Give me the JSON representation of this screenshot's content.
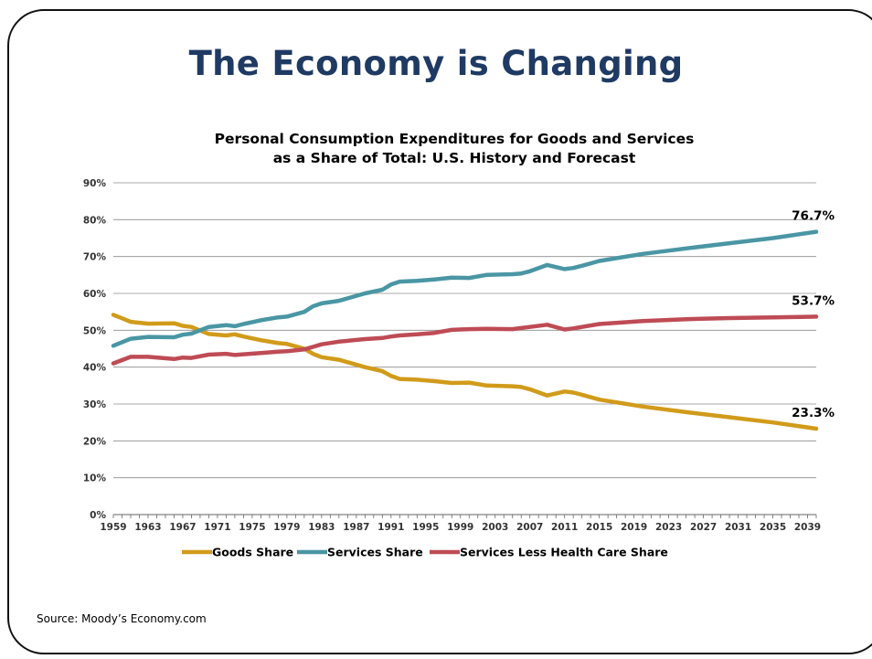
{
  "slide": {
    "title": "The Economy is Changing",
    "source": "Source: Moody’s Economy.com"
  },
  "chart_data": {
    "type": "line",
    "title": "Personal Consumption Expenditures for Goods and Services",
    "subtitle": "as a Share of Total: U.S. History and Forecast",
    "xlabel": "",
    "ylabel": "",
    "ylim": [
      0,
      90
    ],
    "y_ticks": [
      "0%",
      "10%",
      "20%",
      "30%",
      "40%",
      "50%",
      "60%",
      "70%",
      "80%",
      "90%"
    ],
    "x_tick_labels": [
      "1959",
      "1963",
      "1967",
      "1971",
      "1975",
      "1979",
      "1983",
      "1987",
      "1991",
      "1995",
      "1999",
      "2003",
      "2007",
      "2011",
      "2015",
      "2019",
      "2023",
      "2027",
      "2031",
      "2035",
      "2039"
    ],
    "grid": true,
    "legend_position": "bottom",
    "series": [
      {
        "name": "Goods Share",
        "color": "#d19b1a",
        "end_label": "23.3%",
        "points": [
          [
            1959,
            54.2
          ],
          [
            1961,
            52.3
          ],
          [
            1963,
            51.8
          ],
          [
            1966,
            51.9
          ],
          [
            1967,
            51.2
          ],
          [
            1968,
            50.9
          ],
          [
            1970,
            49.0
          ],
          [
            1972,
            48.6
          ],
          [
            1973,
            48.9
          ],
          [
            1974,
            48.3
          ],
          [
            1976,
            47.3
          ],
          [
            1978,
            46.5
          ],
          [
            1979,
            46.3
          ],
          [
            1981,
            45.0
          ],
          [
            1982,
            43.6
          ],
          [
            1983,
            42.7
          ],
          [
            1985,
            42.0
          ],
          [
            1988,
            40.0
          ],
          [
            1990,
            38.9
          ],
          [
            1991,
            37.6
          ],
          [
            1992,
            36.8
          ],
          [
            1994,
            36.6
          ],
          [
            1996,
            36.2
          ],
          [
            1998,
            35.7
          ],
          [
            2000,
            35.8
          ],
          [
            2002,
            35.0
          ],
          [
            2005,
            34.8
          ],
          [
            2006,
            34.6
          ],
          [
            2007,
            34.0
          ],
          [
            2009,
            32.3
          ],
          [
            2011,
            33.4
          ],
          [
            2012,
            33.1
          ],
          [
            2013,
            32.5
          ],
          [
            2015,
            31.2
          ],
          [
            2020,
            29.3
          ],
          [
            2025,
            27.8
          ],
          [
            2030,
            26.4
          ],
          [
            2035,
            25.0
          ],
          [
            2040,
            23.3
          ]
        ]
      },
      {
        "name": "Services Share",
        "color": "#4a96a4",
        "end_label": "76.7%",
        "points": [
          [
            1959,
            45.8
          ],
          [
            1961,
            47.7
          ],
          [
            1963,
            48.2
          ],
          [
            1966,
            48.1
          ],
          [
            1967,
            48.8
          ],
          [
            1968,
            49.1
          ],
          [
            1970,
            50.9
          ],
          [
            1972,
            51.4
          ],
          [
            1973,
            51.1
          ],
          [
            1974,
            51.7
          ],
          [
            1976,
            52.7
          ],
          [
            1978,
            53.5
          ],
          [
            1979,
            53.7
          ],
          [
            1981,
            55.0
          ],
          [
            1982,
            56.5
          ],
          [
            1983,
            57.3
          ],
          [
            1985,
            58.0
          ],
          [
            1988,
            60.0
          ],
          [
            1990,
            61.0
          ],
          [
            1991,
            62.4
          ],
          [
            1992,
            63.2
          ],
          [
            1994,
            63.4
          ],
          [
            1996,
            63.8
          ],
          [
            1998,
            64.3
          ],
          [
            2000,
            64.2
          ],
          [
            2002,
            65.0
          ],
          [
            2005,
            65.2
          ],
          [
            2006,
            65.4
          ],
          [
            2007,
            66.0
          ],
          [
            2009,
            67.7
          ],
          [
            2011,
            66.6
          ],
          [
            2012,
            66.9
          ],
          [
            2013,
            67.5
          ],
          [
            2015,
            68.8
          ],
          [
            2020,
            70.7
          ],
          [
            2025,
            72.2
          ],
          [
            2030,
            73.6
          ],
          [
            2035,
            75.0
          ],
          [
            2040,
            76.7
          ]
        ]
      },
      {
        "name": "Services Less Health Care Share",
        "color": "#be4b55",
        "end_label": "53.7%",
        "points": [
          [
            1959,
            41.0
          ],
          [
            1961,
            42.8
          ],
          [
            1963,
            42.8
          ],
          [
            1966,
            42.2
          ],
          [
            1967,
            42.6
          ],
          [
            1968,
            42.5
          ],
          [
            1970,
            43.4
          ],
          [
            1972,
            43.6
          ],
          [
            1973,
            43.3
          ],
          [
            1974,
            43.5
          ],
          [
            1976,
            43.8
          ],
          [
            1978,
            44.2
          ],
          [
            1979,
            44.3
          ],
          [
            1981,
            44.8
          ],
          [
            1982,
            45.5
          ],
          [
            1983,
            46.2
          ],
          [
            1985,
            46.9
          ],
          [
            1988,
            47.6
          ],
          [
            1990,
            47.9
          ],
          [
            1991,
            48.3
          ],
          [
            1992,
            48.6
          ],
          [
            1994,
            48.9
          ],
          [
            1996,
            49.3
          ],
          [
            1998,
            50.1
          ],
          [
            2000,
            50.3
          ],
          [
            2002,
            50.4
          ],
          [
            2005,
            50.3
          ],
          [
            2006,
            50.6
          ],
          [
            2007,
            50.9
          ],
          [
            2009,
            51.5
          ],
          [
            2011,
            50.2
          ],
          [
            2012,
            50.5
          ],
          [
            2013,
            50.9
          ],
          [
            2015,
            51.7
          ],
          [
            2020,
            52.5
          ],
          [
            2025,
            53.0
          ],
          [
            2030,
            53.3
          ],
          [
            2035,
            53.5
          ],
          [
            2040,
            53.7
          ]
        ]
      }
    ]
  }
}
